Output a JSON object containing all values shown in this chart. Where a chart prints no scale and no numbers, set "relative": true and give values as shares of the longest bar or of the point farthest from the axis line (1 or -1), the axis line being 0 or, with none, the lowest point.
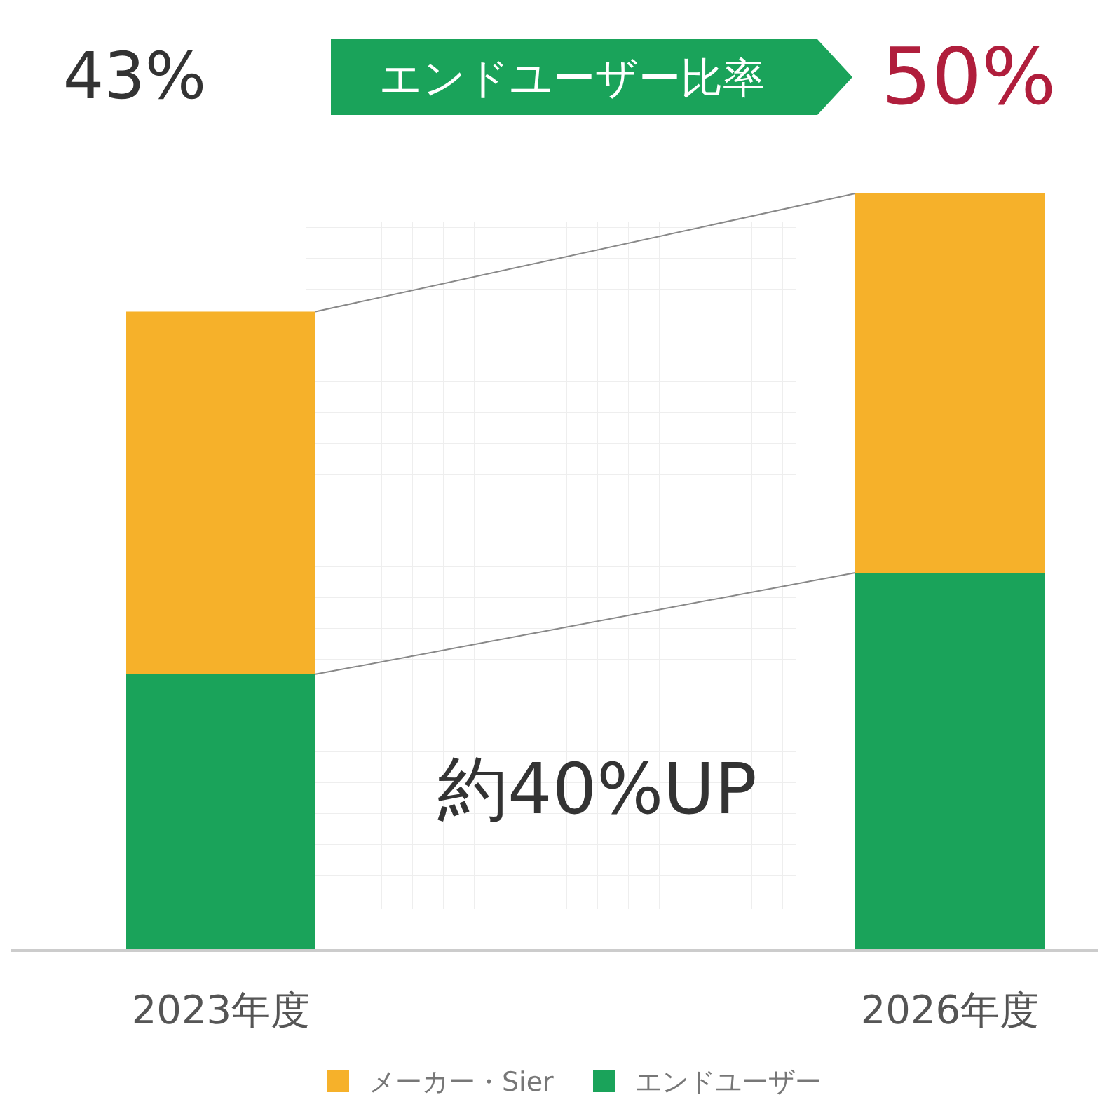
{
  "chart_data": {
    "type": "bar",
    "stacked": true,
    "relative": true,
    "categories": [
      "2023年度",
      "2026年度"
    ],
    "series": [
      {
        "name": "エンドユーザー",
        "color": "#1aa35a",
        "values": [
          0.365,
          0.499
        ]
      },
      {
        "name": "メーカー・Sier",
        "color": "#f6b12a",
        "values": [
          0.479,
          0.501
        ]
      }
    ],
    "legend": "bottom",
    "annotations": [
      "43%",
      "エンドユーザー比率",
      "50%",
      "約40%UP"
    ]
  }
}
